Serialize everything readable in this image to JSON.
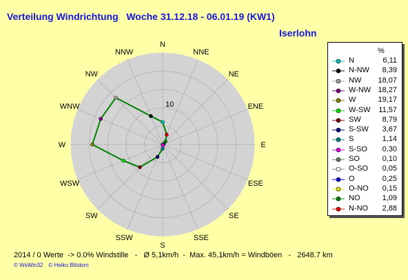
{
  "title": "Verteilung Windrichtung   Woche 31.12.18 - 06.01.19 (KW1)",
  "location": "Iserlohn",
  "chart_data": {
    "type": "radar",
    "title": "Verteilung Windrichtung   Woche 31.12.18 - 06.01.19 (KW1)",
    "unit": "%",
    "ring_label": "10",
    "rmax": 25,
    "rings": [
      5,
      10,
      15,
      20,
      25
    ],
    "categories": [
      "N",
      "NNE",
      "NE",
      "ENE",
      "E",
      "ESE",
      "SE",
      "SSE",
      "S",
      "SSW",
      "SW",
      "WSW",
      "W",
      "WNW",
      "NW",
      "NNW"
    ],
    "values_clockwise": [
      6.11,
      2.88,
      1.09,
      0.15,
      0.25,
      0.05,
      0.1,
      0.3,
      1.14,
      3.67,
      8.79,
      11.57,
      19.17,
      18.27,
      18.07,
      8.39
    ],
    "line_color": "#008000",
    "legend": [
      {
        "name": "N",
        "value": "6,11",
        "color": "#00c0c0"
      },
      {
        "name": "N-NW",
        "value": "8,39",
        "color": "#000000"
      },
      {
        "name": "NW",
        "value": "18,07",
        "color": "#a0a0a0"
      },
      {
        "name": "W-NW",
        "value": "18,27",
        "color": "#800080"
      },
      {
        "name": "W",
        "value": "19,17",
        "color": "#808000"
      },
      {
        "name": "W-SW",
        "value": "11,57",
        "color": "#00e000"
      },
      {
        "name": "SW",
        "value": "8,79",
        "color": "#800000"
      },
      {
        "name": "S-SW",
        "value": "3,67",
        "color": "#000080"
      },
      {
        "name": "S",
        "value": "1,14",
        "color": "#008080"
      },
      {
        "name": "S-SO",
        "value": "0,30",
        "color": "#e000e0"
      },
      {
        "name": "SO",
        "value": "0,10",
        "color": "#608060"
      },
      {
        "name": "O-SO",
        "value": "0,05",
        "color": "#ffffff"
      },
      {
        "name": "O",
        "value": "0,25",
        "color": "#0000e0"
      },
      {
        "name": "O-NO",
        "value": "0,15",
        "color": "#e0e000"
      },
      {
        "name": "NO",
        "value": "1,09",
        "color": "#008000"
      },
      {
        "name": "N-NO",
        "value": "2,88",
        "color": "#e00000"
      }
    ]
  },
  "footer": "2014 / 0 Werte  -> 0.0% Windstille   -   Ø 5,1km/h  -  Max. 45,1km/h = Windböen   -   2648.7 km",
  "copyright": {
    "left": "© WsWin32",
    "right": "© Heiko Blödorn"
  }
}
